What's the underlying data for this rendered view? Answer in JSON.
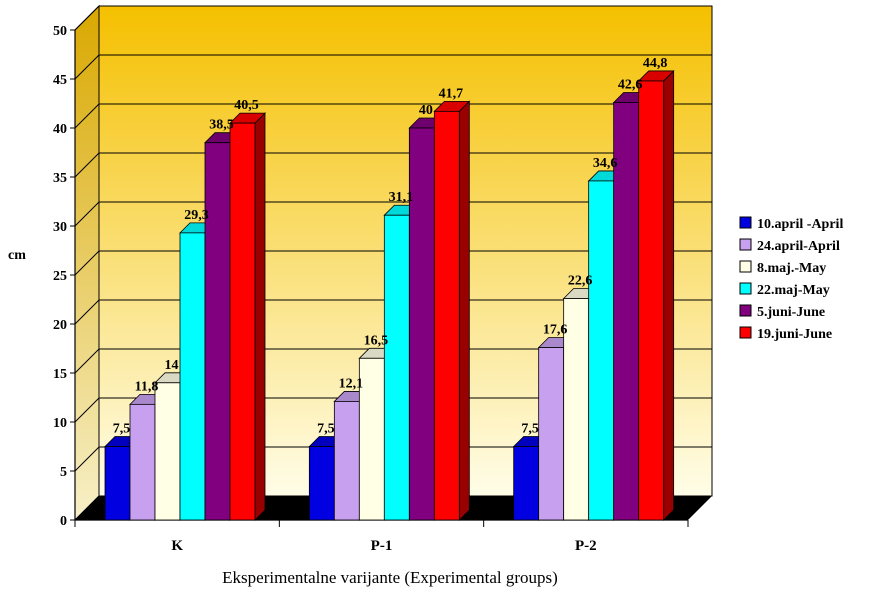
{
  "chart_data": {
    "type": "bar",
    "title": "",
    "xlabel": "Eksperimentalne varijante (Experimental groups)",
    "ylabel": "cm",
    "categories": [
      "K",
      "P-1",
      "P-2"
    ],
    "series": [
      {
        "name": "10.april -April",
        "color": "#0000e0",
        "values": [
          7.5,
          7.5,
          7.5
        ],
        "labels": [
          "7,5",
          "7,5",
          "7,5"
        ]
      },
      {
        "name": "24.april-April",
        "color": "#c8a0f0",
        "values": [
          11.8,
          12.1,
          17.6
        ],
        "labels": [
          "11,8",
          "12,1",
          "17,6"
        ]
      },
      {
        "name": "8.maj.-May",
        "color": "#ffffe6",
        "values": [
          14,
          16.5,
          22.6
        ],
        "labels": [
          "14",
          "16,5",
          "22,6"
        ]
      },
      {
        "name": "22.maj-May",
        "color": "#00ffff",
        "values": [
          29.3,
          31.1,
          34.6
        ],
        "labels": [
          "29,3",
          "31,1",
          "34,6"
        ]
      },
      {
        "name": "5.juni-June",
        "color": "#800080",
        "values": [
          38.5,
          40,
          42.6
        ],
        "labels": [
          "38,5",
          "40",
          "42,6"
        ]
      },
      {
        "name": "19.juni-June",
        "color": "#ff0000",
        "values": [
          40.5,
          41.7,
          44.8
        ],
        "labels": [
          "40,5",
          "41,7",
          "44,8"
        ]
      }
    ],
    "ylim": [
      0,
      50
    ],
    "yticks": [
      0,
      5,
      10,
      15,
      20,
      25,
      30,
      35,
      40,
      45,
      50
    ],
    "grid": true,
    "legend": "right",
    "background_gradient": [
      "#f5c000",
      "#fffde8"
    ],
    "style": "3d-bar"
  }
}
